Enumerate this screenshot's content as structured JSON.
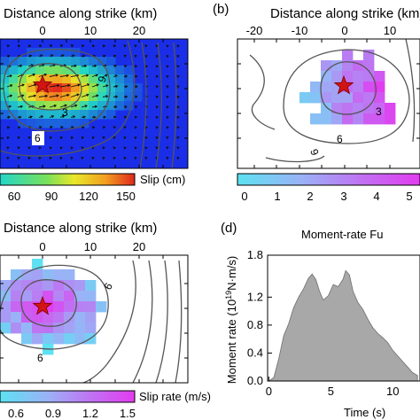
{
  "panels": {
    "a": {
      "axis_title": "Distance along strike (km)",
      "top_ticks": [
        "0",
        "10",
        "20"
      ],
      "colorbar_label": "Slip (cm)",
      "colorbar_ticks": [
        "60",
        "90",
        "120",
        "150"
      ],
      "contour_labels": [
        "9",
        "3",
        "6"
      ]
    },
    "b": {
      "letter": "(b)",
      "axis_title": "Distance along strike (km)",
      "top_ticks": [
        "-20",
        "-10",
        "0",
        "10"
      ],
      "colorbar_ticks": [
        "0",
        "1",
        "2",
        "3",
        "4",
        "5"
      ],
      "contour_labels": [
        "3",
        "6",
        "9"
      ]
    },
    "c": {
      "axis_title": "Distance along strike (km)",
      "top_ticks": [
        "0",
        "10",
        "20"
      ],
      "colorbar_label": "Slip rate (m/s)",
      "colorbar_ticks": [
        "0.6",
        "0.9",
        "1.2",
        "1.5"
      ],
      "contour_labels": [
        "6",
        "6"
      ]
    },
    "d": {
      "letter": "(d)",
      "title": "Moment-rate Fu",
      "ylabel_main": "Moment rate (10",
      "ylabel_exp": "19",
      "ylabel_tail": "N·m/s)",
      "xlabel": "Time (s)"
    }
  },
  "colors": {
    "slip_scale": [
      "#1a2ee8",
      "#1e9ad2",
      "#22d6c8",
      "#7ae05a",
      "#e8e82a",
      "#f2a020",
      "#e0281e"
    ],
    "rate_scale": [
      "#5ce2f2",
      "#9ab2f6",
      "#c26ef2",
      "#e23cf0"
    ],
    "hypocenter": "#d21414",
    "moment_fill": "#a8a8a8",
    "contour": "#555555"
  },
  "chart_data": {
    "type": "area",
    "title": "Moment-rate Fu",
    "xlabel": "Time (s)",
    "ylabel": "Moment rate (10^19 N·m/s)",
    "x_ticks": [
      0,
      5,
      10
    ],
    "y_ticks": [
      0.0,
      0.4,
      0.8,
      1.2,
      1.8
    ],
    "xlim": [
      -0.1,
      12.2
    ],
    "ylim": [
      0,
      1.8
    ],
    "series": [
      {
        "x": [
          0,
          0.4,
          0.8,
          1.2,
          1.6,
          2.0,
          2.4,
          2.8,
          3.2,
          3.5,
          3.8,
          4.1,
          4.4,
          4.8,
          5.2,
          5.6,
          6.0,
          6.2,
          6.5,
          6.8,
          7.2,
          7.6,
          8.0,
          8.4,
          8.8,
          9.2,
          9.6,
          10.0,
          10.4,
          10.8,
          11.2,
          11.6,
          12.0
        ],
        "values": [
          0,
          0.05,
          0.32,
          0.65,
          0.82,
          1.05,
          1.2,
          1.32,
          1.47,
          1.53,
          1.45,
          1.28,
          1.16,
          1.22,
          1.38,
          1.35,
          1.46,
          1.58,
          1.52,
          1.28,
          1.12,
          1.02,
          0.88,
          0.76,
          0.68,
          0.62,
          0.55,
          0.44,
          0.36,
          0.28,
          0.2,
          0.12,
          0.08
        ]
      }
    ]
  }
}
